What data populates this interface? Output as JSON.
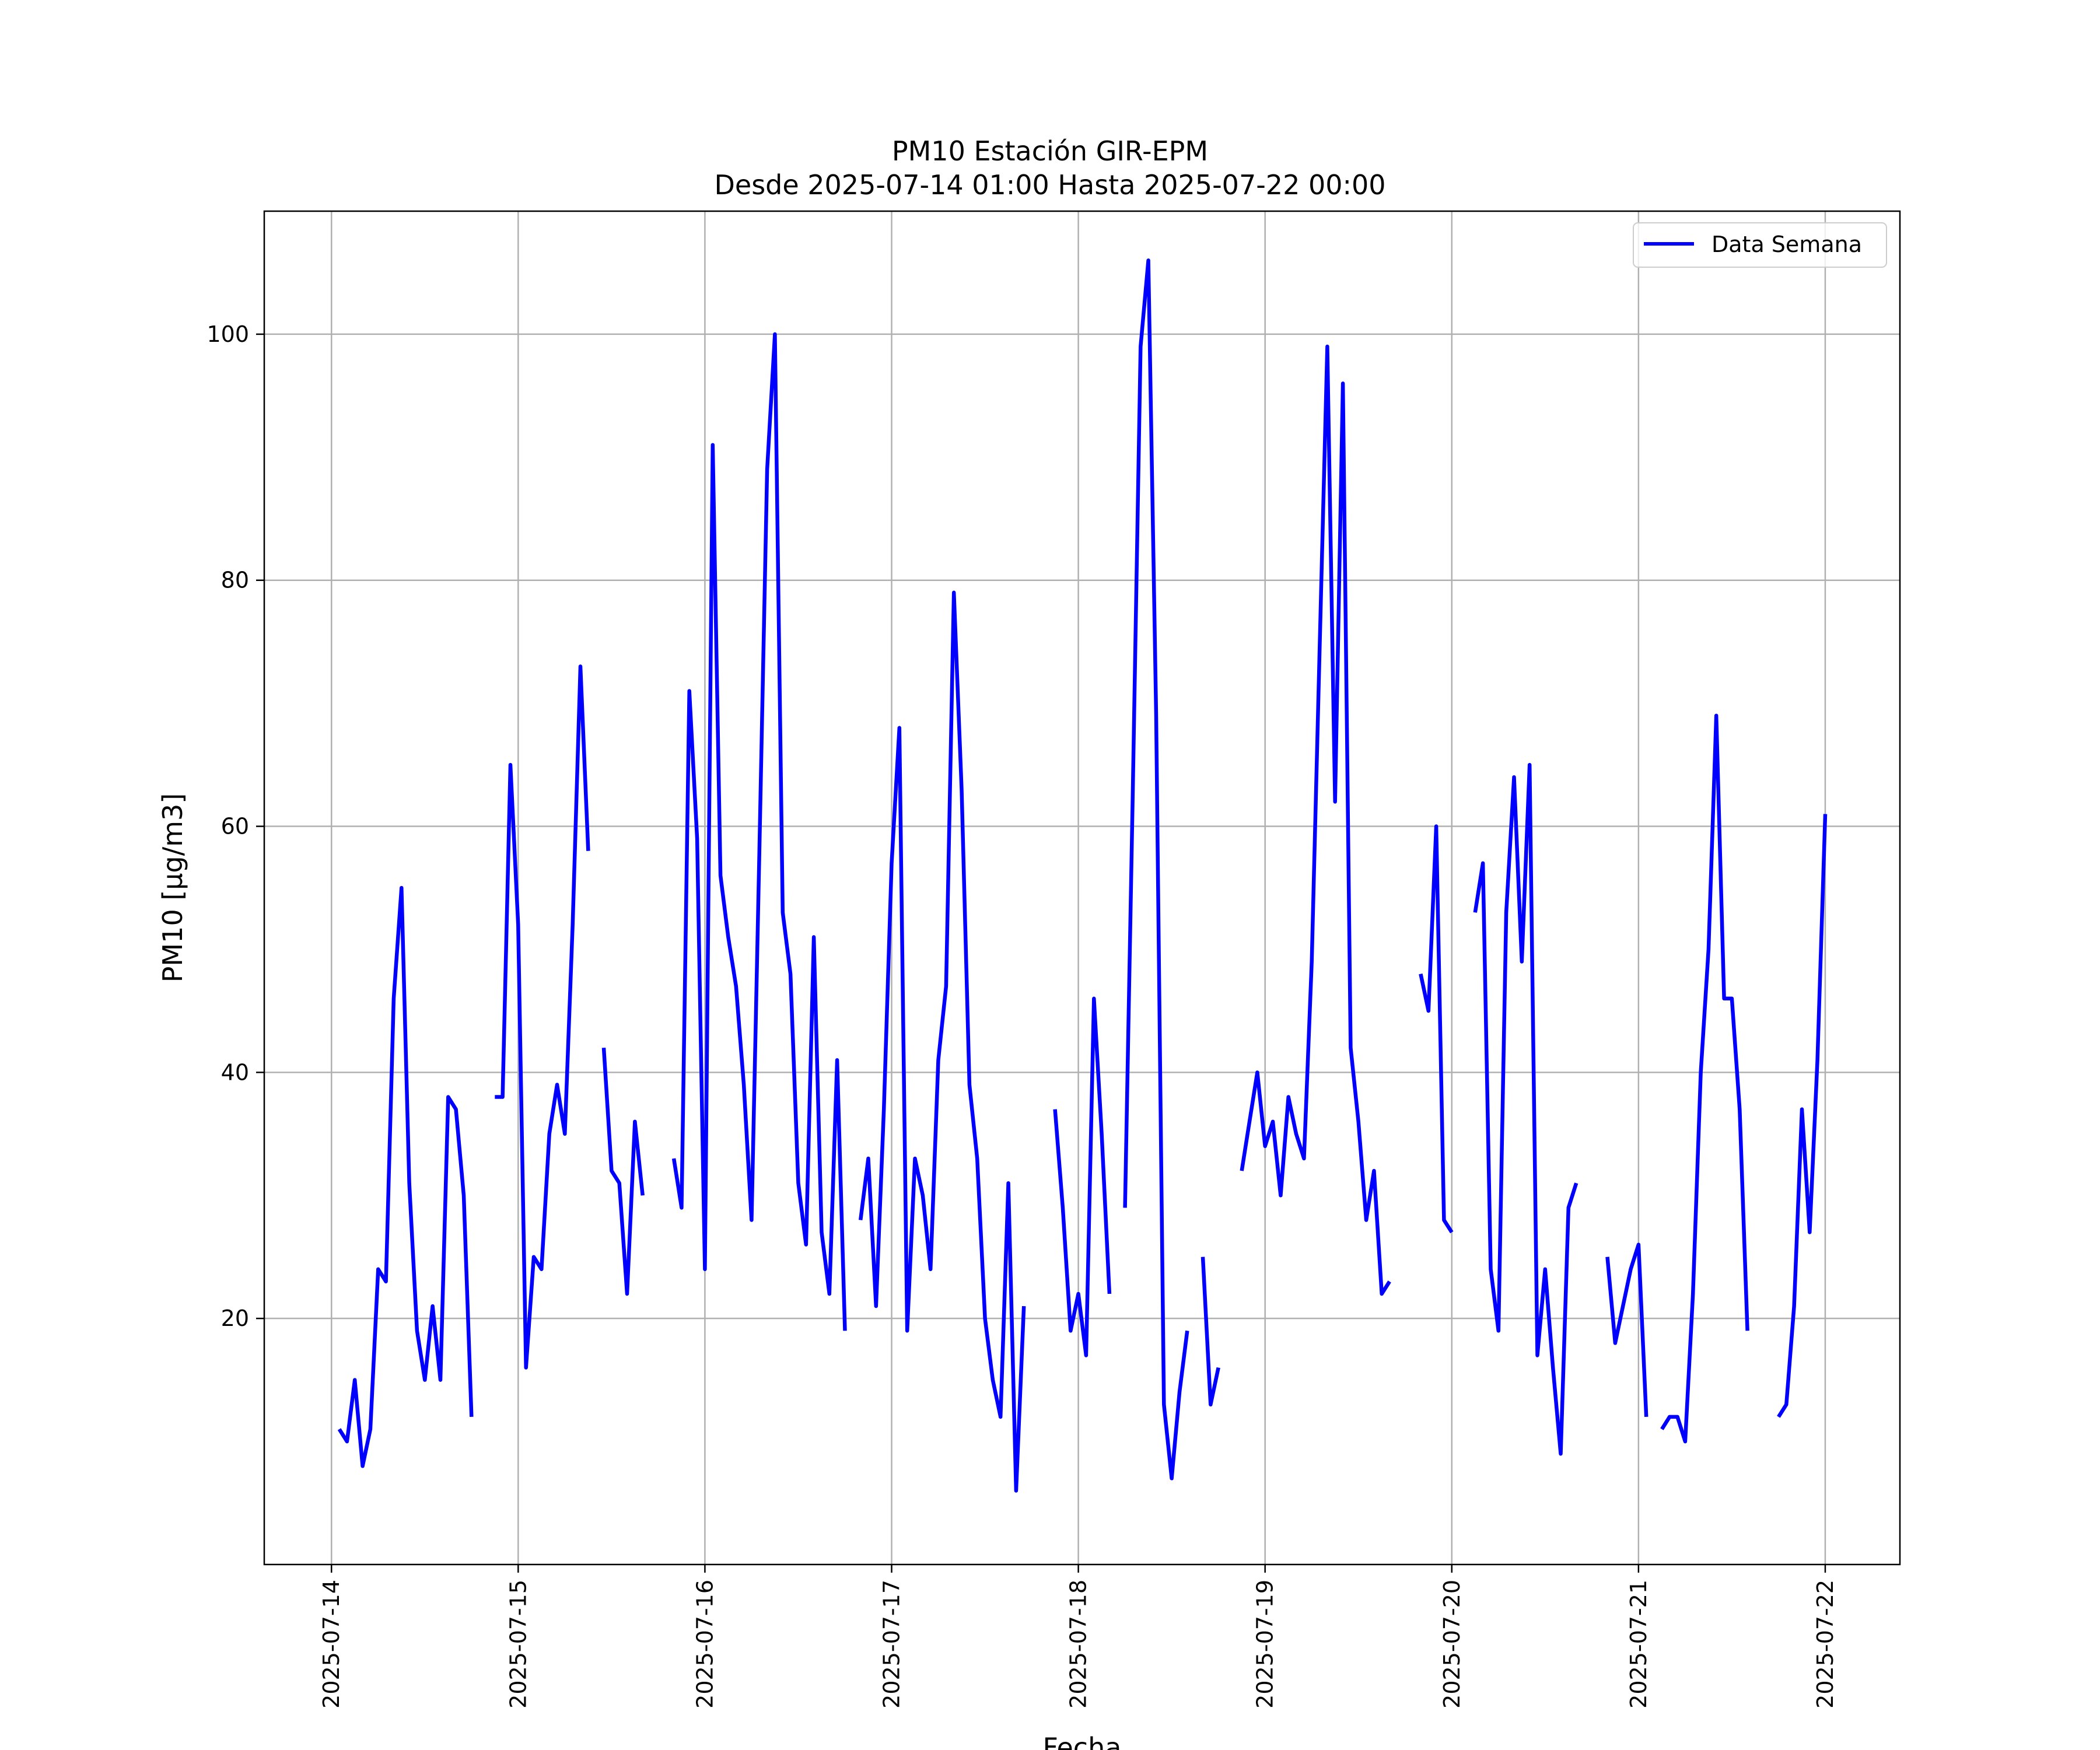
{
  "chart_data": {
    "type": "line",
    "title": "PM10 Estación GIR-EPM",
    "subtitle": "Desde 2025-07-14 01:00 Hasta 2025-07-22 00:00",
    "xlabel": "Fecha",
    "ylabel": "PM10 [μg/m3]",
    "x_ticks": [
      "2025-07-14",
      "2025-07-15",
      "2025-07-16",
      "2025-07-17",
      "2025-07-18",
      "2025-07-19",
      "2025-07-20",
      "2025-07-21",
      "2025-07-22"
    ],
    "y_ticks": [
      20,
      40,
      60,
      80,
      100
    ],
    "xlim_days": [
      -0.36,
      8.4
    ],
    "ylim": [
      0,
      110
    ],
    "grid": true,
    "legend": {
      "position": "top-right"
    },
    "colors": {
      "line": "#0000ff",
      "grid": "#b0b0b0"
    },
    "series": [
      {
        "name": "Data Semana",
        "segments": [
          [
            [
              "2025-07-14 01:00",
              11
            ],
            [
              "2025-07-14 02:00",
              10
            ],
            [
              "2025-07-14 03:00",
              15
            ],
            [
              "2025-07-14 04:00",
              8
            ],
            [
              "2025-07-14 05:00",
              11
            ],
            [
              "2025-07-14 06:00",
              24
            ],
            [
              "2025-07-14 07:00",
              23
            ],
            [
              "2025-07-14 08:00",
              46
            ],
            [
              "2025-07-14 09:00",
              55
            ],
            [
              "2025-07-14 10:00",
              31
            ],
            [
              "2025-07-14 11:00",
              19
            ],
            [
              "2025-07-14 12:00",
              15
            ],
            [
              "2025-07-14 13:00",
              21
            ],
            [
              "2025-07-14 14:00",
              15
            ],
            [
              "2025-07-14 15:00",
              38
            ],
            [
              "2025-07-14 16:00",
              37
            ],
            [
              "2025-07-14 17:00",
              30
            ],
            [
              "2025-07-14 18:00",
              12
            ]
          ],
          [
            [
              "2025-07-14 21:00",
              38
            ],
            [
              "2025-07-14 22:00",
              38
            ],
            [
              "2025-07-14 23:00",
              65
            ],
            [
              "2025-07-15 00:00",
              52
            ],
            [
              "2025-07-15 01:00",
              16
            ],
            [
              "2025-07-15 02:00",
              25
            ],
            [
              "2025-07-15 03:00",
              24
            ],
            [
              "2025-07-15 04:00",
              35
            ],
            [
              "2025-07-15 05:00",
              39
            ],
            [
              "2025-07-15 06:00",
              35
            ],
            [
              "2025-07-15 07:00",
              52
            ],
            [
              "2025-07-15 08:00",
              73
            ],
            [
              "2025-07-15 09:00",
              58
            ]
          ],
          [
            [
              "2025-07-15 11:00",
              42
            ],
            [
              "2025-07-15 12:00",
              32
            ],
            [
              "2025-07-15 13:00",
              31
            ],
            [
              "2025-07-15 14:00",
              22
            ],
            [
              "2025-07-15 15:00",
              36
            ],
            [
              "2025-07-15 16:00",
              30
            ]
          ],
          [
            [
              "2025-07-15 20:00",
              33
            ],
            [
              "2025-07-15 21:00",
              29
            ],
            [
              "2025-07-15 22:00",
              71
            ],
            [
              "2025-07-15 23:00",
              59
            ],
            [
              "2025-07-16 00:00",
              24
            ],
            [
              "2025-07-16 01:00",
              91
            ],
            [
              "2025-07-16 02:00",
              56
            ],
            [
              "2025-07-16 03:00",
              51
            ],
            [
              "2025-07-16 04:00",
              47
            ],
            [
              "2025-07-16 05:00",
              39
            ],
            [
              "2025-07-16 06:00",
              28
            ],
            [
              "2025-07-16 07:00",
              58
            ],
            [
              "2025-07-16 08:00",
              89
            ],
            [
              "2025-07-16 09:00",
              100
            ],
            [
              "2025-07-16 10:00",
              53
            ],
            [
              "2025-07-16 11:00",
              48
            ],
            [
              "2025-07-16 12:00",
              31
            ],
            [
              "2025-07-16 13:00",
              26
            ],
            [
              "2025-07-16 14:00",
              51
            ],
            [
              "2025-07-16 15:00",
              27
            ],
            [
              "2025-07-16 16:00",
              22
            ],
            [
              "2025-07-16 17:00",
              41
            ],
            [
              "2025-07-16 18:00",
              19
            ]
          ],
          [
            [
              "2025-07-16 20:00",
              28
            ],
            [
              "2025-07-16 21:00",
              33
            ],
            [
              "2025-07-16 22:00",
              21
            ],
            [
              "2025-07-16 23:00",
              37
            ],
            [
              "2025-07-17 00:00",
              57
            ],
            [
              "2025-07-17 01:00",
              68
            ],
            [
              "2025-07-17 02:00",
              19
            ],
            [
              "2025-07-17 03:00",
              33
            ],
            [
              "2025-07-17 04:00",
              30
            ],
            [
              "2025-07-17 05:00",
              24
            ],
            [
              "2025-07-17 06:00",
              41
            ],
            [
              "2025-07-17 07:00",
              47
            ],
            [
              "2025-07-17 08:00",
              79
            ],
            [
              "2025-07-17 09:00",
              63
            ],
            [
              "2025-07-17 10:00",
              39
            ],
            [
              "2025-07-17 11:00",
              33
            ],
            [
              "2025-07-17 12:00",
              20
            ],
            [
              "2025-07-17 13:00",
              15
            ],
            [
              "2025-07-17 14:00",
              12
            ],
            [
              "2025-07-17 15:00",
              31
            ],
            [
              "2025-07-17 16:00",
              6
            ],
            [
              "2025-07-17 17:00",
              21
            ]
          ],
          [
            [
              "2025-07-17 21:00",
              37
            ],
            [
              "2025-07-17 22:00",
              29
            ],
            [
              "2025-07-17 23:00",
              19
            ],
            [
              "2025-07-18 00:00",
              22
            ],
            [
              "2025-07-18 01:00",
              17
            ],
            [
              "2025-07-18 02:00",
              46
            ],
            [
              "2025-07-18 03:00",
              35
            ],
            [
              "2025-07-18 04:00",
              22
            ]
          ],
          [
            [
              "2025-07-18 06:00",
              29
            ],
            [
              "2025-07-18 07:00",
              63
            ],
            [
              "2025-07-18 08:00",
              99
            ],
            [
              "2025-07-18 09:00",
              106
            ],
            [
              "2025-07-18 10:00",
              69
            ],
            [
              "2025-07-18 11:00",
              13
            ],
            [
              "2025-07-18 12:00",
              7
            ],
            [
              "2025-07-18 13:00",
              14
            ],
            [
              "2025-07-18 14:00",
              19
            ]
          ],
          [
            [
              "2025-07-18 16:00",
              25
            ],
            [
              "2025-07-18 17:00",
              13
            ],
            [
              "2025-07-18 18:00",
              16
            ]
          ],
          [
            [
              "2025-07-18 21:00",
              32
            ],
            [
              "2025-07-18 22:00",
              36
            ],
            [
              "2025-07-18 23:00",
              40
            ],
            [
              "2025-07-19 00:00",
              34
            ],
            [
              "2025-07-19 01:00",
              36
            ],
            [
              "2025-07-19 02:00",
              30
            ],
            [
              "2025-07-19 03:00",
              38
            ],
            [
              "2025-07-19 04:00",
              35
            ],
            [
              "2025-07-19 05:00",
              33
            ],
            [
              "2025-07-19 06:00",
              49
            ],
            [
              "2025-07-19 07:00",
              74
            ],
            [
              "2025-07-19 08:00",
              99
            ],
            [
              "2025-07-19 09:00",
              62
            ],
            [
              "2025-07-19 10:00",
              96
            ],
            [
              "2025-07-19 11:00",
              42
            ],
            [
              "2025-07-19 12:00",
              36
            ],
            [
              "2025-07-19 13:00",
              28
            ],
            [
              "2025-07-19 14:00",
              32
            ],
            [
              "2025-07-19 15:00",
              22
            ],
            [
              "2025-07-19 16:00",
              23
            ]
          ],
          [
            [
              "2025-07-19 20:00",
              48
            ],
            [
              "2025-07-19 21:00",
              45
            ],
            [
              "2025-07-19 22:00",
              60
            ],
            [
              "2025-07-19 23:00",
              28
            ],
            [
              "2025-07-20 00:00",
              27
            ]
          ],
          [
            [
              "2025-07-20 03:00",
              53
            ],
            [
              "2025-07-20 04:00",
              57
            ],
            [
              "2025-07-20 05:00",
              24
            ],
            [
              "2025-07-20 06:00",
              19
            ],
            [
              "2025-07-20 07:00",
              53
            ],
            [
              "2025-07-20 08:00",
              64
            ],
            [
              "2025-07-20 09:00",
              49
            ],
            [
              "2025-07-20 10:00",
              65
            ],
            [
              "2025-07-20 11:00",
              17
            ],
            [
              "2025-07-20 12:00",
              24
            ],
            [
              "2025-07-20 13:00",
              16
            ],
            [
              "2025-07-20 14:00",
              9
            ],
            [
              "2025-07-20 15:00",
              29
            ],
            [
              "2025-07-20 16:00",
              31
            ]
          ],
          [
            [
              "2025-07-20 20:00",
              25
            ],
            [
              "2025-07-20 21:00",
              18
            ],
            [
              "2025-07-20 22:00",
              21
            ],
            [
              "2025-07-20 23:00",
              24
            ],
            [
              "2025-07-21 00:00",
              26
            ],
            [
              "2025-07-21 01:00",
              12
            ]
          ],
          [
            [
              "2025-07-21 03:00",
              11
            ],
            [
              "2025-07-21 04:00",
              12
            ],
            [
              "2025-07-21 05:00",
              12
            ],
            [
              "2025-07-21 06:00",
              10
            ],
            [
              "2025-07-21 07:00",
              22
            ],
            [
              "2025-07-21 08:00",
              40
            ],
            [
              "2025-07-21 09:00",
              50
            ],
            [
              "2025-07-21 10:00",
              69
            ],
            [
              "2025-07-21 11:00",
              46
            ],
            [
              "2025-07-21 12:00",
              46
            ],
            [
              "2025-07-21 13:00",
              37
            ],
            [
              "2025-07-21 14:00",
              19
            ]
          ],
          [
            [
              "2025-07-21 18:00",
              12
            ],
            [
              "2025-07-21 19:00",
              13
            ],
            [
              "2025-07-21 20:00",
              21
            ],
            [
              "2025-07-21 21:00",
              37
            ],
            [
              "2025-07-21 22:00",
              27
            ],
            [
              "2025-07-21 23:00",
              41
            ],
            [
              "2025-07-22 00:00",
              61
            ]
          ]
        ]
      }
    ]
  }
}
